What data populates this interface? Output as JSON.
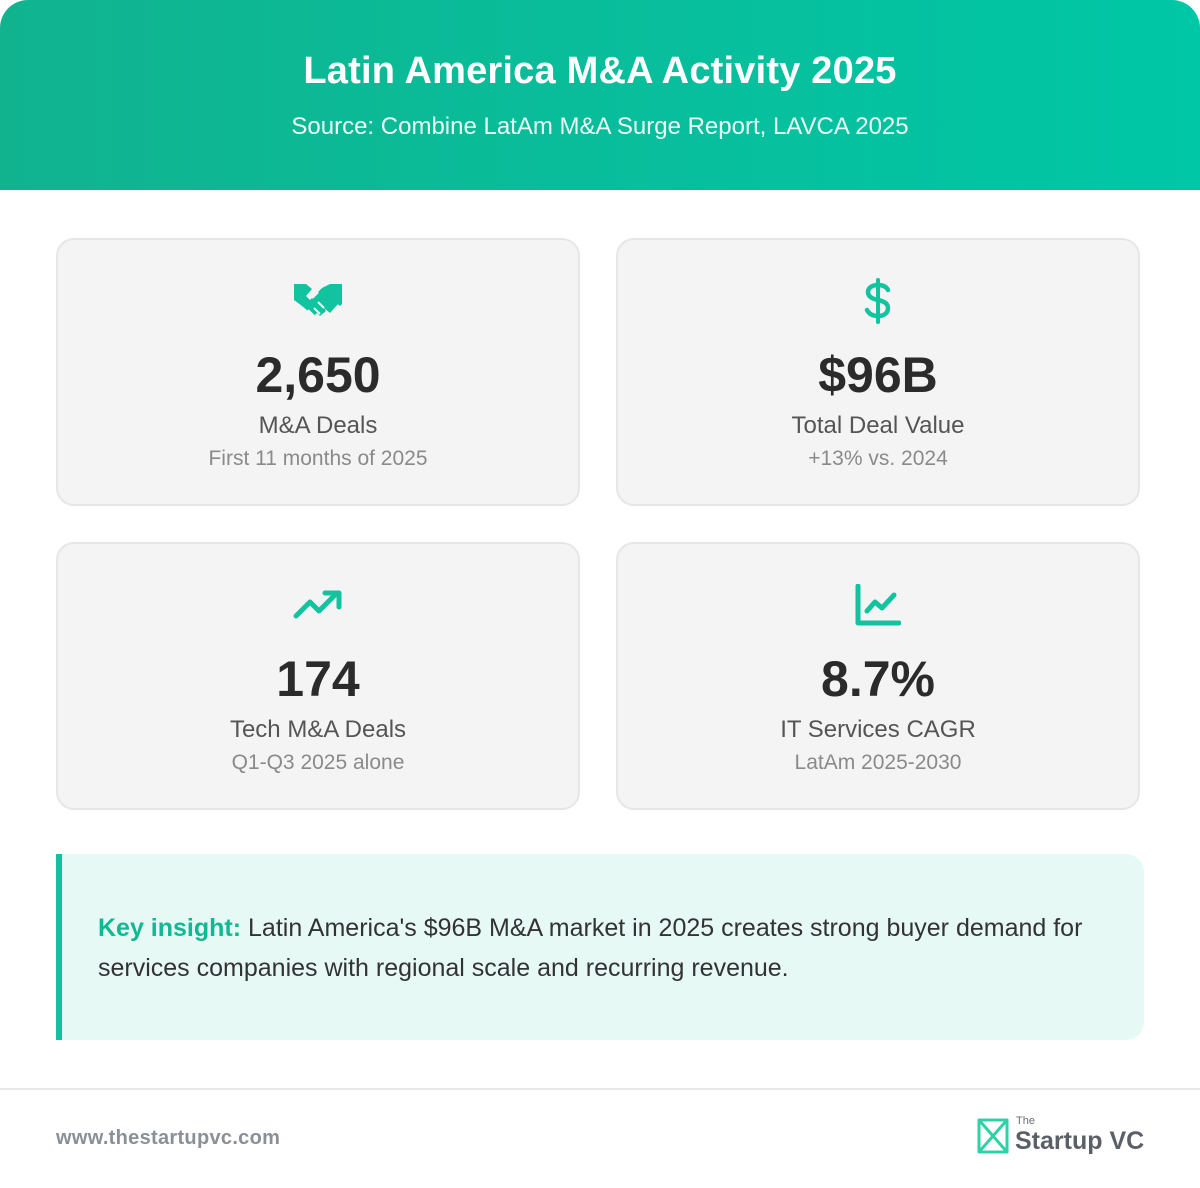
{
  "header": {
    "title": "Latin America M&A Activity 2025",
    "subtitle": "Source: Combine LatAm M&A Surge Report, LAVCA 2025"
  },
  "stats": [
    {
      "icon": "handshake-icon",
      "value": "2,650",
      "label": "M&A Deals",
      "note": "First 11 months of 2025"
    },
    {
      "icon": "dollar-icon",
      "value": "$96B",
      "label": "Total Deal Value",
      "note": "+13% vs. 2024"
    },
    {
      "icon": "trending-up-icon",
      "value": "174",
      "label": "Tech M&A Deals",
      "note": "Q1-Q3 2025 alone"
    },
    {
      "icon": "line-chart-icon",
      "value": "8.7%",
      "label": "IT Services CAGR",
      "note": "LatAm 2025-2030"
    }
  ],
  "insight": {
    "lead": "Key insight:",
    "text": "Latin America's $96B M&A market in 2025 creates strong buyer demand for services companies with regional scale and recurring revenue."
  },
  "footer": {
    "url": "www.thestartupvc.com",
    "logo_small": "The",
    "logo_text": "Startup VC"
  },
  "colors": {
    "accent": "#12C3A0",
    "header_start": "#11B38F",
    "header_end": "#00C7A6",
    "insight_bg": "#E6F9F4"
  }
}
